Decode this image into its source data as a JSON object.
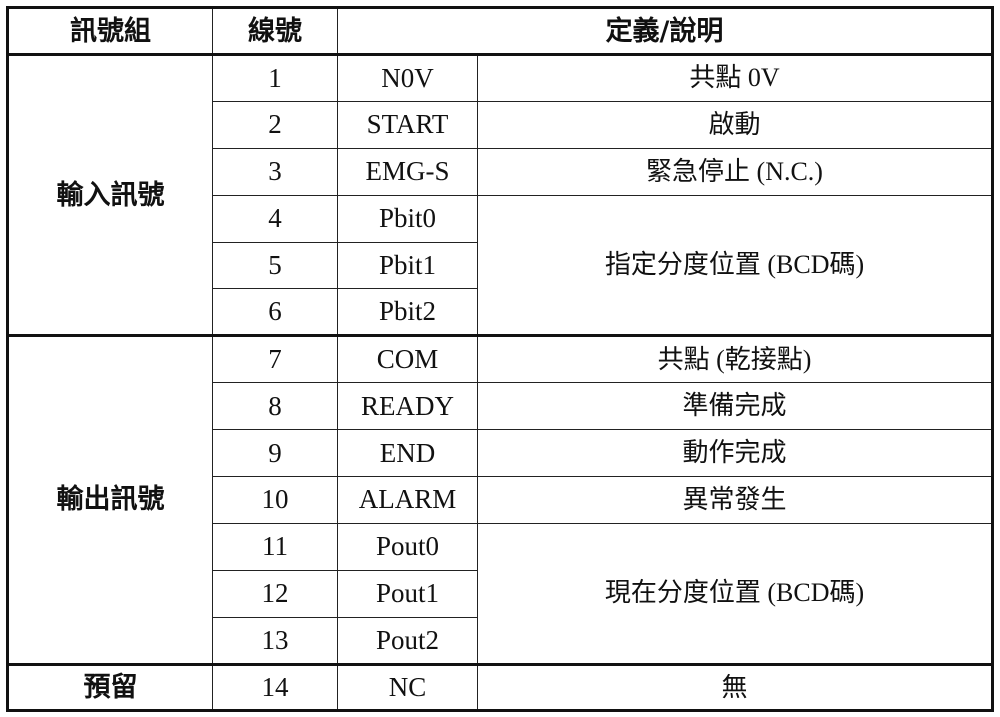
{
  "headers": {
    "group": "訊號組",
    "line": "線號",
    "definition": "定義/說明"
  },
  "groups": [
    {
      "name": "輸入訊號",
      "rows": [
        {
          "no": "1",
          "signal": "N0V",
          "desc": "共點 0V"
        },
        {
          "no": "2",
          "signal": "START",
          "desc": "啟動"
        },
        {
          "no": "3",
          "signal": "EMG-S",
          "desc": "緊急停止 (N.C.)"
        },
        {
          "no": "4",
          "signal": "Pbit0",
          "desc": "指定分度位置 (BCD碼)"
        },
        {
          "no": "5",
          "signal": "Pbit1"
        },
        {
          "no": "6",
          "signal": "Pbit2"
        }
      ]
    },
    {
      "name": "輸出訊號",
      "rows": [
        {
          "no": "7",
          "signal": "COM",
          "desc": "共點 (乾接點)"
        },
        {
          "no": "8",
          "signal": "READY",
          "desc": "準備完成"
        },
        {
          "no": "9",
          "signal": "END",
          "desc": "動作完成"
        },
        {
          "no": "10",
          "signal": "ALARM",
          "desc": "異常發生"
        },
        {
          "no": "11",
          "signal": "Pout0",
          "desc": "現在分度位置 (BCD碼)"
        },
        {
          "no": "12",
          "signal": "Pout1"
        },
        {
          "no": "13",
          "signal": "Pout2"
        }
      ]
    },
    {
      "name": "預留",
      "rows": [
        {
          "no": "14",
          "signal": "NC",
          "desc": "無"
        }
      ]
    }
  ]
}
